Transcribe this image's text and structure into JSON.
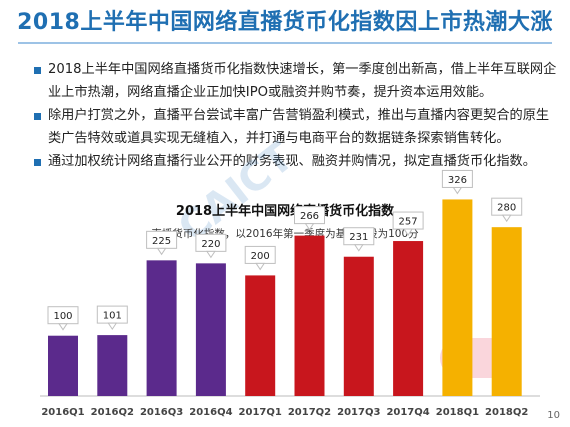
{
  "page": {
    "title": "2018上半年中国网络直播货币化指数因上市热潮大涨",
    "bullets": [
      "2018上半年中国网络直播货币化指数快速增长，第一季度创出新高，借上半年互联网企业上市热潮，网络直播企业正加快IPO或融资并购节奏，提升资本运用效能。",
      "除用户打赏之外，直播平台尝试丰富广告营销盈利模式，推出与直播内容更契合的原生类广告特效或道具实现无缝植入，并打通与电商平台的数据链条探索销售转化。",
      "通过加权统计网络直播行业公开的财务表现、融资并购情况，拟定直播货币化指数。"
    ],
    "page_number": "10",
    "watermark_text": "CAICT 中国信通院"
  },
  "chart_data": {
    "type": "bar",
    "title": "2018上半年中国网络直播货币化指数",
    "subtitle": "直播货币化指数，以2016年第一季度为基期，设为100分",
    "categories": [
      "2016Q1",
      "2016Q2",
      "2016Q3",
      "2016Q4",
      "2017Q1",
      "2017Q2",
      "2017Q3",
      "2017Q4",
      "2018Q1",
      "2018Q2"
    ],
    "values": [
      100,
      101,
      225,
      220,
      200,
      266,
      231,
      257,
      326,
      280
    ],
    "colors": [
      "#5b2a8c",
      "#5b2a8c",
      "#5b2a8c",
      "#5b2a8c",
      "#c8161d",
      "#c8161d",
      "#c8161d",
      "#c8161d",
      "#f5b100",
      "#f5b100"
    ],
    "ylim": [
      0,
      340
    ],
    "grid": false,
    "legend": "none"
  }
}
